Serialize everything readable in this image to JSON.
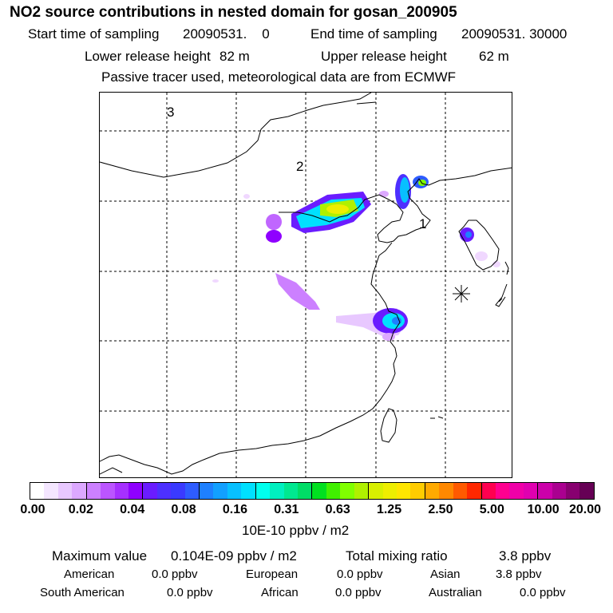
{
  "title": "NO2 source contributions in nested domain for gosan_200905",
  "sampling": {
    "start_label": "Start time of sampling",
    "start_value": "20090531.    0",
    "end_label": "End time of sampling",
    "end_value": "20090531. 30000"
  },
  "release": {
    "lower_label": "Lower release height",
    "lower_value": "82 m",
    "upper_label": "Upper release height",
    "upper_value": "62 m"
  },
  "note": "Passive tracer used, meteorological data are from ECMWF",
  "map": {
    "labels": [
      "3",
      "2",
      "1"
    ],
    "colors": {
      "land_line": "#000000",
      "grid": "#000000",
      "receptor": "#000000"
    }
  },
  "colorbar": {
    "ticks": [
      "0.00",
      "0.02",
      "0.04",
      "0.08",
      "0.16",
      "0.31",
      "0.63",
      "1.25",
      "2.50",
      "5.00",
      "10.00",
      "20.00"
    ],
    "unit": "10E-10 ppbv / m2",
    "colors": [
      "#ffffff",
      "#f4e6ff",
      "#e8c8ff",
      "#dca8ff",
      "#cc80ff",
      "#bb55ff",
      "#a630ff",
      "#8f00ff",
      "#6a1cff",
      "#4d30ff",
      "#3a3aff",
      "#2e5cff",
      "#1e80ff",
      "#12a0ff",
      "#08c0ff",
      "#00e0ff",
      "#00ffee",
      "#00f0c0",
      "#00e890",
      "#00dd66",
      "#00e020",
      "#40f000",
      "#80ff00",
      "#b0f000",
      "#d8f000",
      "#eeee00",
      "#ffe600",
      "#ffcc00",
      "#ffaa00",
      "#ff8800",
      "#ff5a00",
      "#ff2800",
      "#ff0050",
      "#ff0090",
      "#f000a8",
      "#e000b0",
      "#cc00aa",
      "#aa0090",
      "#880070",
      "#660055"
    ]
  },
  "summary": {
    "max_label": "Maximum value",
    "max_value": "0.104E-09 ppbv / m2",
    "total_label": "Total mixing ratio",
    "total_value": "3.8 ppbv",
    "sources": [
      {
        "name": "American",
        "value": "0.0 ppbv"
      },
      {
        "name": "European",
        "value": "0.0 ppbv"
      },
      {
        "name": "Asian",
        "value": "3.8 ppbv"
      },
      {
        "name": "South American",
        "value": "0.0 ppbv"
      },
      {
        "name": "African",
        "value": "0.0 ppbv"
      },
      {
        "name": "Australian",
        "value": "0.0 ppbv"
      }
    ]
  }
}
